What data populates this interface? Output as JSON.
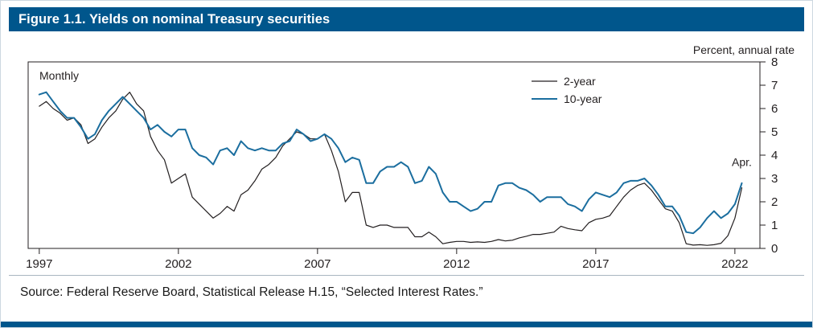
{
  "figure": {
    "title": "Figure 1.1. Yields on nominal Treasury securities",
    "source": "Source: Federal Reserve Board, Statistical Release H.15, “Selected Interest Rates.”"
  },
  "colors": {
    "header_blue": "#00568c",
    "line_10_year": "#1b6e9f",
    "line_2_year": "#231f20"
  },
  "chart_data": {
    "type": "line",
    "frequency_label": "Monthly",
    "unit_label": "Percent, annual rate",
    "annotation": {
      "label": "Apr.",
      "x": 2022.25,
      "y": 3.4
    },
    "x_ticks": [
      1997,
      2002,
      2007,
      2012,
      2017,
      2022
    ],
    "y_ticks": [
      0,
      1,
      2,
      3,
      4,
      5,
      6,
      7,
      8
    ],
    "ylim": [
      0,
      8
    ],
    "xlim": [
      1996.6,
      2022.9
    ],
    "grid": false,
    "legend_position": "top-center-right",
    "x_unit": "decimal year (quarterly samples, last point April 2022)",
    "x": [
      1997,
      1997.25,
      1997.5,
      1997.75,
      1998,
      1998.25,
      1998.5,
      1998.75,
      1999,
      1999.25,
      1999.5,
      1999.75,
      2000,
      2000.25,
      2000.5,
      2000.75,
      2001,
      2001.25,
      2001.5,
      2001.75,
      2002,
      2002.25,
      2002.5,
      2002.75,
      2003,
      2003.25,
      2003.5,
      2003.75,
      2004,
      2004.25,
      2004.5,
      2004.75,
      2005,
      2005.25,
      2005.5,
      2005.75,
      2006,
      2006.25,
      2006.5,
      2006.75,
      2007,
      2007.25,
      2007.5,
      2007.75,
      2008,
      2008.25,
      2008.5,
      2008.75,
      2009,
      2009.25,
      2009.5,
      2009.75,
      2010,
      2010.25,
      2010.5,
      2010.75,
      2011,
      2011.25,
      2011.5,
      2011.75,
      2012,
      2012.25,
      2012.5,
      2012.75,
      2013,
      2013.25,
      2013.5,
      2013.75,
      2014,
      2014.25,
      2014.5,
      2014.75,
      2015,
      2015.25,
      2015.5,
      2015.75,
      2016,
      2016.25,
      2016.5,
      2016.75,
      2017,
      2017.25,
      2017.5,
      2017.75,
      2018,
      2018.25,
      2018.5,
      2018.75,
      2019,
      2019.25,
      2019.5,
      2019.75,
      2020,
      2020.25,
      2020.5,
      2020.75,
      2021,
      2021.25,
      2021.5,
      2021.75,
      2022,
      2022.25
    ],
    "series": [
      {
        "name": "2-year",
        "color": "#231f20",
        "stroke_width": 1.2,
        "values": [
          6.1,
          6.3,
          6.0,
          5.8,
          5.5,
          5.6,
          5.3,
          4.5,
          4.7,
          5.2,
          5.6,
          5.9,
          6.4,
          6.7,
          6.2,
          5.9,
          4.8,
          4.2,
          3.8,
          2.8,
          3.0,
          3.2,
          2.2,
          1.9,
          1.6,
          1.3,
          1.5,
          1.8,
          1.6,
          2.3,
          2.5,
          2.9,
          3.4,
          3.6,
          3.9,
          4.4,
          4.7,
          5.0,
          4.9,
          4.7,
          4.7,
          4.9,
          4.2,
          3.3,
          2.0,
          2.4,
          2.4,
          1.0,
          0.9,
          1.0,
          1.0,
          0.9,
          0.9,
          0.9,
          0.5,
          0.5,
          0.7,
          0.5,
          0.2,
          0.26,
          0.3,
          0.3,
          0.26,
          0.28,
          0.26,
          0.3,
          0.38,
          0.32,
          0.35,
          0.45,
          0.52,
          0.6,
          0.6,
          0.65,
          0.7,
          0.95,
          0.85,
          0.8,
          0.76,
          1.1,
          1.25,
          1.3,
          1.4,
          1.8,
          2.2,
          2.5,
          2.7,
          2.8,
          2.5,
          2.1,
          1.7,
          1.6,
          1.1,
          0.2,
          0.14,
          0.16,
          0.13,
          0.16,
          0.22,
          0.55,
          1.3,
          2.6
        ]
      },
      {
        "name": "10-year",
        "color": "#1b6e9f",
        "stroke_width": 2,
        "values": [
          6.6,
          6.7,
          6.3,
          5.9,
          5.6,
          5.6,
          5.2,
          4.7,
          4.9,
          5.5,
          5.9,
          6.2,
          6.5,
          6.2,
          5.9,
          5.6,
          5.1,
          5.3,
          5.0,
          4.8,
          5.1,
          5.1,
          4.3,
          4.0,
          3.9,
          3.6,
          4.2,
          4.3,
          4.0,
          4.6,
          4.3,
          4.2,
          4.3,
          4.2,
          4.2,
          4.5,
          4.6,
          5.1,
          4.9,
          4.6,
          4.7,
          4.9,
          4.7,
          4.3,
          3.7,
          3.9,
          3.8,
          2.8,
          2.8,
          3.3,
          3.5,
          3.5,
          3.7,
          3.5,
          2.8,
          2.9,
          3.5,
          3.2,
          2.4,
          2.0,
          2.0,
          1.8,
          1.6,
          1.7,
          2.0,
          2.0,
          2.7,
          2.8,
          2.8,
          2.6,
          2.5,
          2.3,
          2.0,
          2.2,
          2.2,
          2.2,
          1.9,
          1.8,
          1.6,
          2.1,
          2.4,
          2.3,
          2.2,
          2.4,
          2.8,
          2.9,
          2.9,
          3.0,
          2.7,
          2.3,
          1.8,
          1.8,
          1.4,
          0.7,
          0.65,
          0.9,
          1.3,
          1.6,
          1.3,
          1.5,
          1.9,
          2.8
        ]
      }
    ]
  }
}
